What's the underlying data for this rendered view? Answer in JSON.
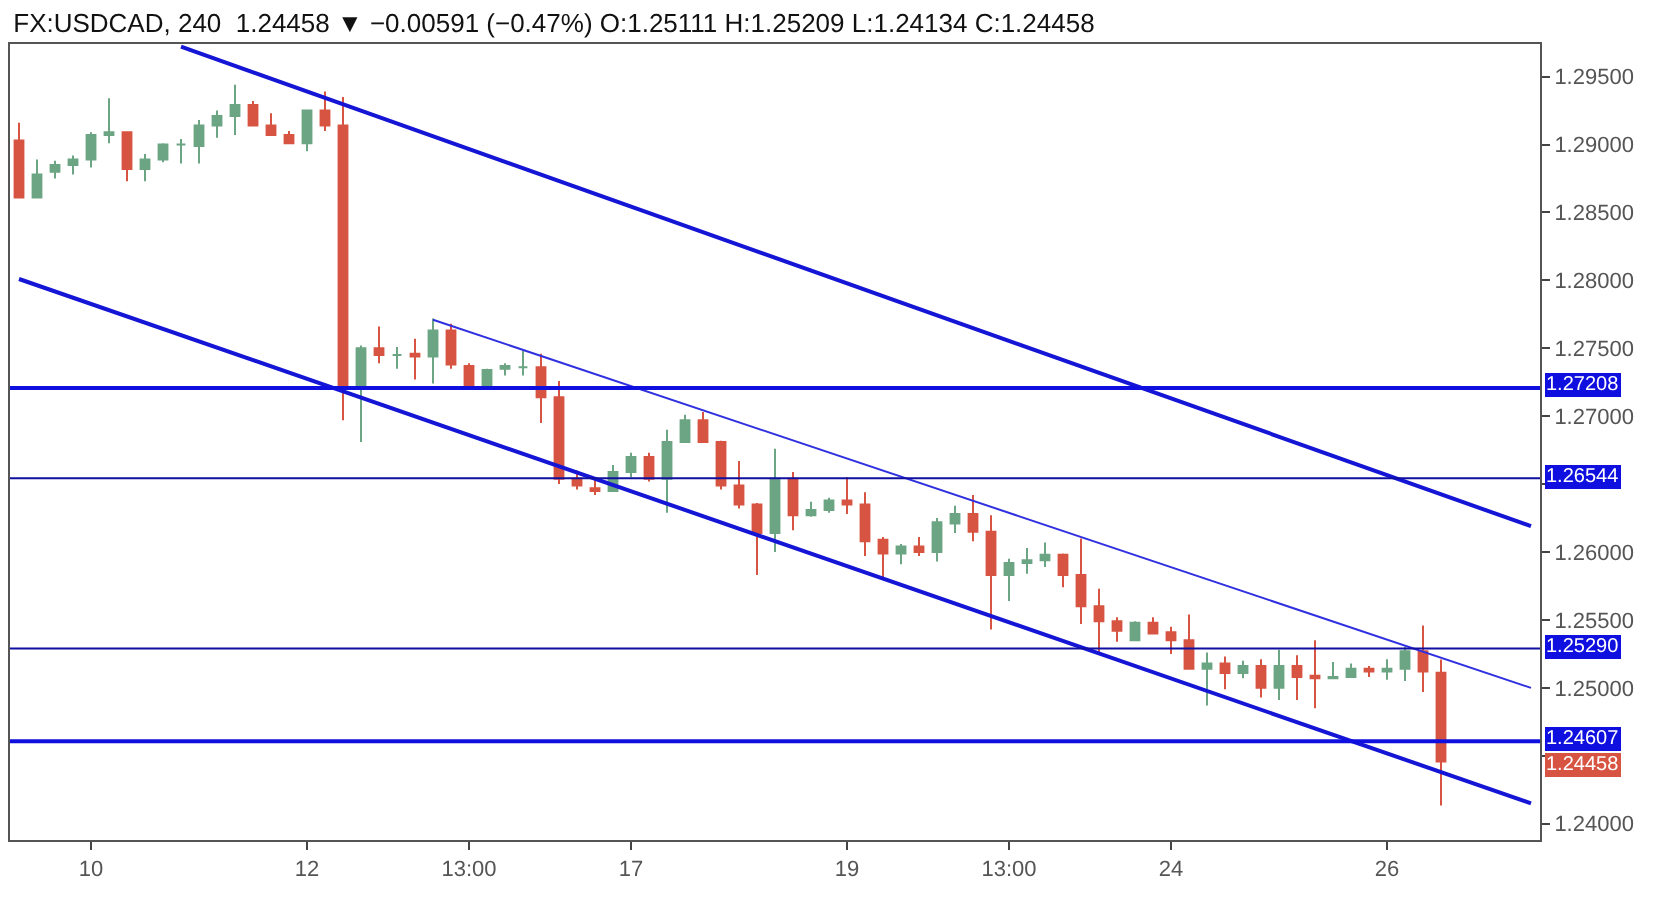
{
  "chart_data": {
    "type": "candlestick",
    "title": "FX:USDCAD, 240",
    "subtitle": "1.24458 ▼ −0.00591 (−0.47%) O:1.25111 H:1.25209 L:1.24134 C:1.24458",
    "categories": [
      null,
      null,
      null,
      null,
      "10",
      null,
      null,
      null,
      null,
      null,
      null,
      null,
      null,
      null,
      null,
      null,
      "12",
      null,
      null,
      null,
      null,
      null,
      null,
      null,
      null,
      "13:00",
      null,
      null,
      null,
      null,
      null,
      null,
      null,
      null,
      "17",
      null,
      null,
      null,
      null,
      null,
      null,
      null,
      null,
      null,
      null,
      null,
      "19",
      null,
      null,
      null,
      null,
      null,
      null,
      null,
      null,
      "13:00",
      null,
      null,
      null,
      null,
      null,
      null,
      null,
      null,
      "24",
      null,
      null,
      null,
      null,
      null,
      null,
      null,
      null,
      null,
      null,
      null,
      "26",
      null,
      null,
      null,
      null,
      null,
      null,
      null,
      null
    ],
    "ohlc": [
      [
        1.2903,
        1.2916,
        1.2861,
        1.2861
      ],
      [
        1.2861,
        1.2889,
        1.2861,
        1.2878
      ],
      [
        1.288,
        1.2888,
        1.2875,
        1.2885
      ],
      [
        1.2885,
        1.2892,
        1.2878,
        1.2889
      ],
      [
        1.2889,
        1.2909,
        1.2883,
        1.2907
      ],
      [
        1.2907,
        1.2934,
        1.2901,
        1.2909
      ],
      [
        1.2909,
        1.2909,
        1.2873,
        1.2882
      ],
      [
        1.2882,
        1.2893,
        1.2873,
        1.2889
      ],
      [
        1.2889,
        1.2901,
        1.2887,
        1.29
      ],
      [
        1.29,
        1.2904,
        1.2886,
        1.29
      ],
      [
        1.2899,
        1.2918,
        1.2886,
        1.2914
      ],
      [
        1.2914,
        1.2925,
        1.2905,
        1.2921
      ],
      [
        1.2921,
        1.2944,
        1.2907,
        1.2929
      ],
      [
        1.2929,
        1.2932,
        1.2914,
        1.2914
      ],
      [
        1.2914,
        1.2923,
        1.2907,
        1.2907
      ],
      [
        1.2907,
        1.291,
        1.2901,
        1.2901
      ],
      [
        1.2901,
        1.2925,
        1.2895,
        1.2925
      ],
      [
        1.2925,
        1.2939,
        1.291,
        1.2914
      ],
      [
        1.2914,
        1.2935,
        1.2697,
        1.2722
      ],
      [
        1.2722,
        1.2752,
        1.2681,
        1.275
      ],
      [
        1.275,
        1.2766,
        1.2739,
        1.2745
      ],
      [
        1.2745,
        1.2751,
        1.2735,
        1.2745
      ],
      [
        1.2746,
        1.2757,
        1.2727,
        1.2744
      ],
      [
        1.2744,
        1.2772,
        1.2724,
        1.2763
      ],
      [
        1.2763,
        1.2768,
        1.2735,
        1.2738
      ],
      [
        1.2737,
        1.2739,
        1.2722,
        1.2722
      ],
      [
        1.2722,
        1.2735,
        1.2722,
        1.2734
      ],
      [
        1.2735,
        1.2739,
        1.273,
        1.2737
      ],
      [
        1.2736,
        1.2748,
        1.273,
        1.2736
      ],
      [
        1.2736,
        1.2746,
        1.2695,
        1.2714
      ],
      [
        1.2714,
        1.2726,
        1.265,
        1.2654
      ],
      [
        1.2654,
        1.266,
        1.2646,
        1.2649
      ],
      [
        1.2647,
        1.2655,
        1.2642,
        1.2645
      ],
      [
        1.2645,
        1.2664,
        1.2645,
        1.2659
      ],
      [
        1.2659,
        1.2673,
        1.2655,
        1.267
      ],
      [
        1.267,
        1.2673,
        1.2652,
        1.2654
      ],
      [
        1.2654,
        1.269,
        1.2629,
        1.2681
      ],
      [
        1.2681,
        1.2701,
        1.2681,
        1.2697
      ],
      [
        1.2697,
        1.2703,
        1.2681,
        1.2681
      ],
      [
        1.2681,
        1.2682,
        1.2646,
        1.2649
      ],
      [
        1.2649,
        1.2667,
        1.2632,
        1.2635
      ],
      [
        1.2635,
        1.2636,
        1.2583,
        1.2614
      ],
      [
        1.2614,
        1.2676,
        1.26,
        1.2654
      ],
      [
        1.2654,
        1.2659,
        1.2616,
        1.2627
      ],
      [
        1.2627,
        1.2637,
        1.2626,
        1.2631
      ],
      [
        1.2631,
        1.264,
        1.2629,
        1.2638
      ],
      [
        1.2638,
        1.2655,
        1.2628,
        1.2635
      ],
      [
        1.2635,
        1.2644,
        1.2597,
        1.2608
      ],
      [
        1.2609,
        1.2611,
        1.258,
        1.2599
      ],
      [
        1.2599,
        1.2606,
        1.2591,
        1.2604
      ],
      [
        1.2604,
        1.2611,
        1.2597,
        1.26
      ],
      [
        1.26,
        1.2625,
        1.2593,
        1.2622
      ],
      [
        1.2621,
        1.2634,
        1.2614,
        1.2628
      ],
      [
        1.2628,
        1.2642,
        1.2608,
        1.2615
      ],
      [
        1.2615,
        1.2627,
        1.2543,
        1.2583
      ],
      [
        1.2583,
        1.2595,
        1.2564,
        1.2592
      ],
      [
        1.2592,
        1.2603,
        1.2584,
        1.2594
      ],
      [
        1.2594,
        1.2607,
        1.2589,
        1.2598
      ],
      [
        1.2598,
        1.2599,
        1.2574,
        1.2583
      ],
      [
        1.2583,
        1.261,
        1.2547,
        1.256
      ],
      [
        1.256,
        1.2573,
        1.2525,
        1.2549
      ],
      [
        1.2549,
        1.2552,
        1.2534,
        1.2542
      ],
      [
        1.2535,
        1.2549,
        1.2535,
        1.2548
      ],
      [
        1.2548,
        1.2552,
        1.254,
        1.254
      ],
      [
        1.2541,
        1.2545,
        1.2525,
        1.2535
      ],
      [
        1.2535,
        1.2554,
        1.2514,
        1.2514
      ],
      [
        1.2514,
        1.2526,
        1.2487,
        1.2518
      ],
      [
        1.2518,
        1.2523,
        1.2499,
        1.2511
      ],
      [
        1.2511,
        1.252,
        1.2507,
        1.2516
      ],
      [
        1.2516,
        1.2521,
        1.2493,
        1.25
      ],
      [
        1.25,
        1.2528,
        1.2491,
        1.2516
      ],
      [
        1.2516,
        1.2524,
        1.2491,
        1.2508
      ],
      [
        1.2509,
        1.2535,
        1.2485,
        1.2507
      ],
      [
        1.2507,
        1.2519,
        1.2507,
        1.2508
      ],
      [
        1.2508,
        1.2518,
        1.2508,
        1.2514
      ],
      [
        1.2514,
        1.2516,
        1.2508,
        1.2512
      ],
      [
        1.2512,
        1.2521,
        1.2506,
        1.2514
      ],
      [
        1.2514,
        1.253,
        1.2505,
        1.2527
      ],
      [
        1.2527,
        1.2546,
        1.2497,
        1.2512
      ],
      [
        1.25111,
        1.25209,
        1.24134,
        1.24458
      ],
      null,
      null,
      null,
      null,
      null
    ],
    "colors": [
      "#d75442",
      "#6ba583",
      "#6ba583",
      "#6ba583",
      "#6ba583",
      "#6ba583",
      "#d75442",
      "#6ba583",
      "#6ba583",
      "#6ba583",
      "#6ba583",
      "#6ba583",
      "#6ba583",
      "#d75442",
      "#d75442",
      "#d75442",
      "#6ba583",
      "#d75442",
      "#d75442",
      "#6ba583",
      "#d75442",
      "#6ba583",
      "#d75442",
      "#6ba583",
      "#d75442",
      "#d75442",
      "#6ba583",
      "#6ba583",
      "#6ba583",
      "#d75442",
      "#d75442",
      "#d75442",
      "#d75442",
      "#6ba583",
      "#6ba583",
      "#d75442",
      "#6ba583",
      "#6ba583",
      "#d75442",
      "#d75442",
      "#d75442",
      "#d75442",
      "#6ba583",
      "#d75442",
      "#6ba583",
      "#6ba583",
      "#d75442",
      "#d75442",
      "#d75442",
      "#6ba583",
      "#d75442",
      "#6ba583",
      "#6ba583",
      "#d75442",
      "#d75442",
      "#6ba583",
      "#6ba583",
      "#6ba583",
      "#d75442",
      "#d75442",
      "#d75442",
      "#d75442",
      "#6ba583",
      "#d75442",
      "#d75442",
      "#d75442",
      "#6ba583",
      "#d75442",
      "#6ba583",
      "#d75442",
      "#6ba583",
      "#d75442",
      "#d75442",
      "#6ba583",
      "#6ba583",
      "#d75442",
      "#6ba583",
      "#6ba583",
      "#d75442",
      "#d75442",
      null,
      null,
      null,
      null,
      null
    ],
    "series": [
      {
        "type": "line",
        "color": "#1515d6",
        "values": [
          null,
          null,
          null,
          null,
          null,
          null,
          null,
          null,
          null,
          1.2972,
          null,
          null,
          null,
          null,
          null,
          null,
          null,
          null,
          null,
          null,
          null,
          null,
          null,
          null,
          null,
          null,
          null,
          null,
          null,
          null,
          null,
          null,
          null,
          null,
          null,
          null,
          null,
          null,
          null,
          null,
          null,
          null,
          null,
          null,
          null,
          null,
          null,
          null,
          null,
          null,
          null,
          null,
          null,
          null,
          null,
          null,
          null,
          null,
          null,
          null,
          null,
          null,
          null,
          null,
          null,
          null,
          null,
          null,
          null,
          null,
          null,
          null,
          null,
          null,
          null,
          null,
          null,
          null,
          null,
          null,
          null,
          null,
          null,
          null,
          1.2619
        ]
      },
      {
        "type": "line",
        "color": "#1515d6",
        "values": [
          1.2801,
          null,
          null,
          null,
          null,
          null,
          null,
          null,
          null,
          null,
          null,
          null,
          null,
          null,
          null,
          null,
          null,
          null,
          null,
          null,
          null,
          null,
          null,
          null,
          null,
          null,
          null,
          null,
          null,
          null,
          null,
          null,
          null,
          null,
          null,
          null,
          null,
          null,
          null,
          null,
          null,
          null,
          null,
          null,
          null,
          null,
          null,
          null,
          null,
          null,
          null,
          null,
          null,
          null,
          null,
          null,
          null,
          null,
          null,
          null,
          null,
          null,
          null,
          null,
          null,
          null,
          null,
          null,
          null,
          null,
          null,
          null,
          null,
          null,
          null,
          null,
          null,
          null,
          null,
          null,
          null,
          null,
          null,
          null,
          1.2415
        ]
      },
      {
        "type": "line",
        "color": "#3030e0",
        "values": [
          null,
          null,
          null,
          null,
          null,
          null,
          null,
          null,
          null,
          null,
          null,
          null,
          null,
          null,
          null,
          null,
          null,
          null,
          null,
          null,
          null,
          null,
          null,
          1.2771,
          null,
          null,
          null,
          null,
          null,
          null,
          null,
          null,
          null,
          null,
          null,
          null,
          null,
          null,
          null,
          null,
          null,
          null,
          null,
          null,
          null,
          null,
          null,
          null,
          null,
          null,
          null,
          null,
          null,
          null,
          null,
          null,
          null,
          null,
          null,
          null,
          null,
          null,
          null,
          null,
          null,
          null,
          null,
          null,
          null,
          null,
          null,
          null,
          null,
          null,
          null,
          null,
          null,
          null,
          null,
          null,
          null,
          null,
          null,
          null,
          1.25
        ]
      }
    ],
    "ref_lines": [
      {
        "axis": "y",
        "value": 1.27208,
        "label": "1.27208",
        "color": "#0f0fe0"
      },
      {
        "axis": "y",
        "value": 1.26544,
        "label": "1.26544",
        "color": "#0f0fa0"
      },
      {
        "axis": "y",
        "value": 1.2529,
        "label": "1.25290",
        "color": "#0f0fa0"
      },
      {
        "axis": "y",
        "value": 1.24607,
        "label": "1.24607",
        "color": "#0f0fe0"
      }
    ],
    "annotations": [
      {
        "text": "1.24458",
        "y": 1.24458
      }
    ],
    "ylim": [
      1.2388,
      1.2974
    ],
    "yticks": [
      {
        "value": 1.24,
        "label": "1.24000"
      },
      {
        "value": 1.245,
        "label": null
      },
      {
        "value": 1.25,
        "label": "1.25000"
      },
      {
        "value": 1.255,
        "label": "1.25500"
      },
      {
        "value": 1.26,
        "label": "1.26000"
      },
      {
        "value": 1.265,
        "label": null
      },
      {
        "value": 1.27,
        "label": "1.27000"
      },
      {
        "value": 1.275,
        "label": "1.27500"
      },
      {
        "value": 1.28,
        "label": "1.28000"
      },
      {
        "value": 1.285,
        "label": "1.28500"
      },
      {
        "value": 1.29,
        "label": "1.29000"
      },
      {
        "value": 1.295,
        "label": "1.29500"
      }
    ]
  }
}
